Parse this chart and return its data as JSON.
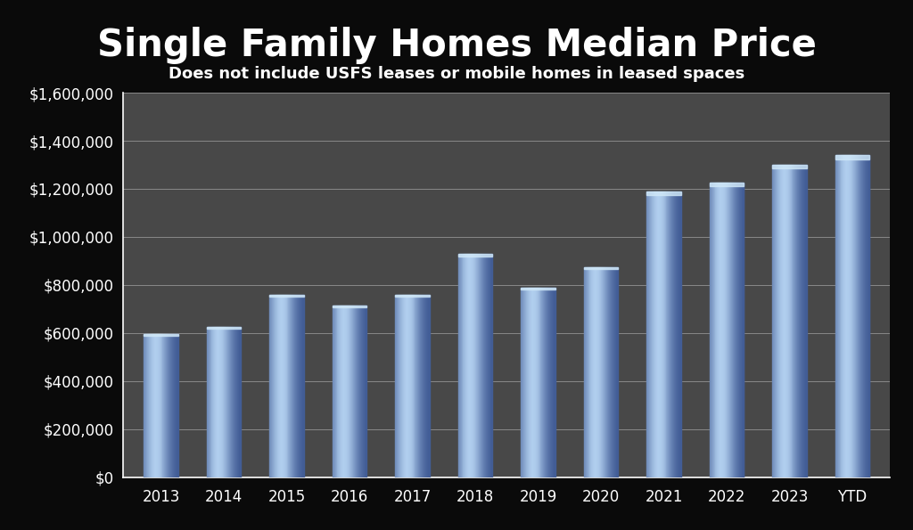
{
  "title": "Single Family Homes Median Price",
  "subtitle": "Does not include USFS leases or mobile homes in leased spaces",
  "categories": [
    "2013",
    "2014",
    "2015",
    "2016",
    "2017",
    "2018",
    "2019",
    "2020",
    "2021",
    "2022",
    "2023",
    "YTD"
  ],
  "values": [
    595000,
    625000,
    760000,
    715000,
    760000,
    930000,
    790000,
    875000,
    1190000,
    1225000,
    1300000,
    1340000
  ],
  "bar_color_left": "#4a70b8",
  "bar_color_center": "#7aaddd",
  "bar_color_right": "#3a5590",
  "bar_color_highlight": "#c0d8f0",
  "background_color": "#0a0a0a",
  "plot_bg_color": "#484848",
  "text_color": "#ffffff",
  "grid_color": "#888888",
  "ylim": [
    0,
    1600000
  ],
  "yticks": [
    0,
    200000,
    400000,
    600000,
    800000,
    1000000,
    1200000,
    1400000,
    1600000
  ],
  "title_fontsize": 30,
  "subtitle_fontsize": 13,
  "tick_fontsize": 12,
  "bar_width": 0.55
}
